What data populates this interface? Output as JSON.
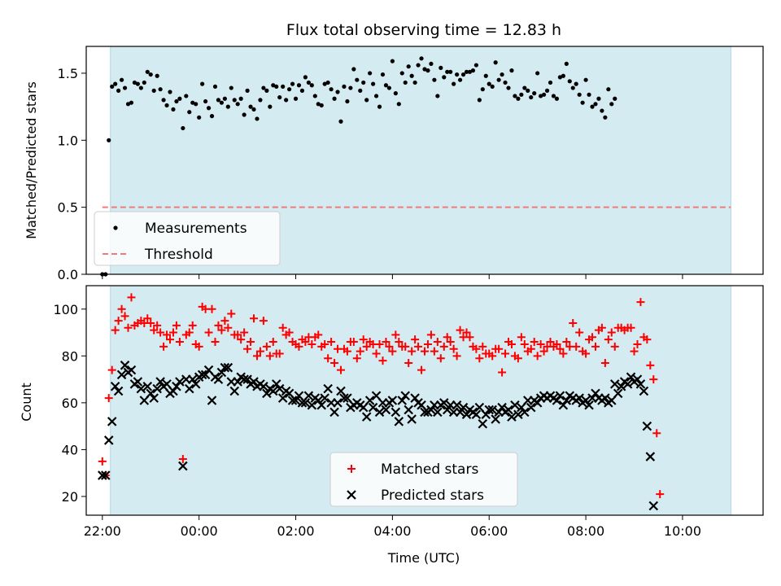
{
  "figure": {
    "title": "Flux total observing time = 12.83 h"
  },
  "chart_data": [
    {
      "type": "scatter",
      "name": "ratio",
      "title": "Flux total observing time = 12.83 h",
      "xlabel": "",
      "ylabel": "Matched/Predicted stars",
      "ylim": [
        0,
        1.7
      ],
      "yticks": [
        "0.0",
        "0.5",
        "1.0",
        "1.5"
      ],
      "xlim": [
        "21:40",
        "11:40"
      ],
      "observing_window": [
        "22:10",
        "11:00"
      ],
      "shade_color": "#d4ebf1",
      "threshold": {
        "name": "Threshold",
        "value": 0.5,
        "color": "#f07b7b"
      },
      "legend_position": "lower-left",
      "series": [
        {
          "name": "Measurements",
          "color": "#000000",
          "marker": "dot",
          "x_start": "22:00",
          "x_step_minutes": 4,
          "values": [
            0.0,
            0.0,
            1.0,
            1.4,
            1.42,
            1.37,
            1.45,
            1.39,
            1.27,
            1.28,
            1.43,
            1.42,
            1.39,
            1.43,
            1.51,
            1.49,
            1.37,
            1.48,
            1.38,
            1.3,
            1.26,
            1.36,
            1.23,
            1.29,
            1.31,
            1.09,
            1.33,
            1.21,
            1.28,
            1.27,
            1.17,
            1.42,
            1.29,
            1.24,
            1.18,
            1.4,
            1.3,
            1.28,
            1.31,
            1.25,
            1.39,
            1.3,
            1.27,
            1.31,
            1.19,
            1.37,
            1.25,
            1.23,
            1.16,
            1.3,
            1.39,
            1.37,
            1.25,
            1.41,
            1.4,
            1.32,
            1.4,
            1.3,
            1.38,
            1.42,
            1.31,
            1.41,
            1.37,
            1.47,
            1.43,
            1.41,
            1.33,
            1.27,
            1.26,
            1.42,
            1.43,
            1.38,
            1.31,
            1.36,
            1.14,
            1.4,
            1.29,
            1.39,
            1.53,
            1.45,
            1.37,
            1.43,
            1.3,
            1.5,
            1.42,
            1.33,
            1.25,
            1.49,
            1.41,
            1.39,
            1.59,
            1.35,
            1.27,
            1.5,
            1.43,
            1.55,
            1.48,
            1.43,
            1.56,
            1.61,
            1.53,
            1.52,
            1.57,
            1.45,
            1.33,
            1.54,
            1.47,
            1.51,
            1.51,
            1.42,
            1.49,
            1.45,
            1.49,
            1.51,
            1.51,
            1.52,
            1.56,
            1.3,
            1.38,
            1.48,
            1.42,
            1.4,
            1.58,
            1.45,
            1.49,
            1.43,
            1.39,
            1.52,
            1.33,
            1.31,
            1.34,
            1.39,
            1.37,
            1.32,
            1.35,
            1.5,
            1.33,
            1.34,
            1.37,
            1.43,
            1.33,
            1.31,
            1.47,
            1.48,
            1.57,
            1.44,
            1.39,
            1.42,
            1.34,
            1.28,
            1.45,
            1.34,
            1.25,
            1.27,
            1.31,
            1.22,
            1.17,
            1.38,
            1.27,
            1.31
          ]
        }
      ]
    },
    {
      "type": "scatter",
      "name": "counts",
      "title": "",
      "xlabel": "Time (UTC)",
      "ylabel": "Count",
      "ylim": [
        12,
        110
      ],
      "yticks": [
        "20",
        "40",
        "60",
        "80",
        "100"
      ],
      "xlim": [
        "21:40",
        "11:40"
      ],
      "xticks": [
        "22:00",
        "00:00",
        "02:00",
        "04:00",
        "06:00",
        "08:00",
        "10:00"
      ],
      "observing_window": [
        "22:10",
        "11:00"
      ],
      "shade_color": "#d4ebf1",
      "legend_position": "lower-center",
      "series": [
        {
          "name": "Matched stars",
          "color": "#ff0000",
          "marker": "plus",
          "x_start": "22:00",
          "x_step_minutes": 4,
          "values": [
            35,
            29,
            62,
            74,
            91,
            95,
            100,
            97,
            92,
            105,
            93,
            94,
            95,
            94,
            96,
            94,
            91,
            93,
            90,
            84,
            89,
            87,
            90,
            93,
            86,
            36,
            89,
            90,
            93,
            85,
            84,
            101,
            100,
            90,
            100,
            86,
            93,
            91,
            95,
            92,
            98,
            89,
            89,
            87,
            90,
            83,
            86,
            96,
            80,
            82,
            95,
            84,
            80,
            86,
            81,
            81,
            92,
            89,
            90,
            86,
            85,
            84,
            87,
            86,
            88,
            85,
            88,
            89,
            84,
            85,
            79,
            86,
            77,
            83,
            74,
            83,
            82,
            86,
            86,
            79,
            82,
            87,
            84,
            86,
            85,
            81,
            85,
            78,
            86,
            84,
            82,
            89,
            86,
            84,
            84,
            77,
            82,
            87,
            84,
            74,
            82,
            85,
            89,
            82,
            86,
            79,
            84,
            88,
            86,
            83,
            80,
            91,
            88,
            90,
            88,
            84,
            83,
            79,
            84,
            81,
            81,
            80,
            83,
            83,
            73,
            81,
            86,
            85,
            80,
            79,
            88,
            85,
            82,
            83,
            86,
            80,
            85,
            82,
            84,
            86,
            84,
            85,
            83,
            81,
            86,
            84,
            94,
            84,
            90,
            82,
            81,
            87,
            88,
            84,
            91,
            92,
            77,
            87,
            90,
            84,
            92,
            92,
            91,
            92,
            92,
            82,
            85,
            103,
            88,
            87,
            76,
            70,
            47,
            21
          ]
        },
        {
          "name": "Predicted stars",
          "color": "#000000",
          "marker": "x",
          "x_start": "22:00",
          "x_step_minutes": 4,
          "values": [
            29,
            29,
            44,
            52,
            67,
            65,
            72,
            76,
            73,
            74,
            68,
            69,
            66,
            61,
            67,
            64,
            62,
            66,
            69,
            67,
            68,
            64,
            65,
            67,
            69,
            33,
            70,
            66,
            70,
            68,
            71,
            72,
            72,
            74,
            61,
            71,
            70,
            73,
            75,
            75,
            69,
            65,
            69,
            71,
            70,
            70,
            68,
            69,
            67,
            68,
            67,
            64,
            66,
            65,
            68,
            66,
            62,
            65,
            64,
            61,
            61,
            63,
            60,
            60,
            63,
            59,
            62,
            61,
            59,
            62,
            66,
            60,
            56,
            60,
            65,
            62,
            62,
            58,
            59,
            60,
            59,
            58,
            54,
            61,
            58,
            63,
            56,
            60,
            57,
            60,
            61,
            56,
            52,
            61,
            63,
            57,
            53,
            62,
            60,
            59,
            56,
            56,
            57,
            59,
            56,
            59,
            60,
            57,
            59,
            56,
            59,
            56,
            58,
            55,
            57,
            56,
            55,
            58,
            51,
            55,
            57,
            57,
            53,
            56,
            58,
            56,
            57,
            54,
            59,
            55,
            58,
            56,
            61,
            58,
            61,
            60,
            62,
            63,
            62,
            63,
            62,
            61,
            63,
            59,
            61,
            63,
            62,
            61,
            62,
            60,
            61,
            59,
            62,
            64,
            62,
            61,
            62,
            60,
            61,
            68,
            64,
            67,
            69,
            68,
            71,
            69,
            70,
            68,
            65,
            50,
            37,
            16
          ]
        }
      ]
    }
  ]
}
